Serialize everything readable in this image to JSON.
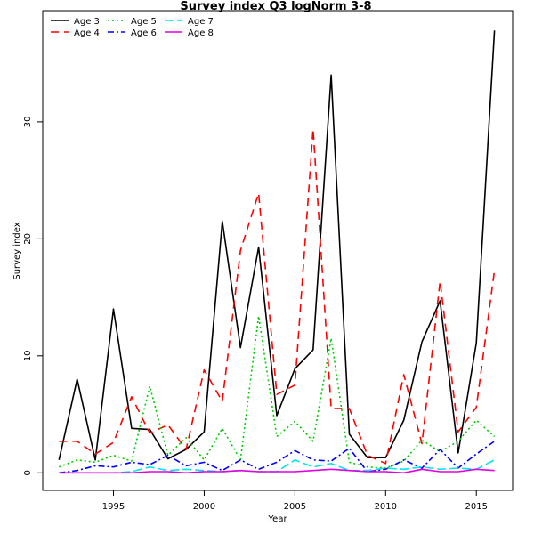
{
  "chart_data": {
    "type": "line",
    "title": "Survey index Q3 logNorm 3-8",
    "xlabel": "Year",
    "ylabel": "Survey index",
    "xlim": [
      1991.1,
      2017.0
    ],
    "ylim": [
      -1.5,
      39.5
    ],
    "xticks": [
      1995,
      2000,
      2005,
      2010,
      2015
    ],
    "yticks": [
      0,
      10,
      20,
      30
    ],
    "grid": false,
    "legend_position": "top-left",
    "x": [
      1992,
      1993,
      1994,
      1995,
      1996,
      1997,
      1998,
      1999,
      2000,
      2001,
      2002,
      2003,
      2004,
      2005,
      2006,
      2007,
      2008,
      2009,
      2010,
      2011,
      2012,
      2013,
      2014,
      2015,
      2016
    ],
    "series": [
      {
        "name": "Age 3",
        "color": "#000000",
        "dash": "",
        "values": [
          1.1,
          8.0,
          1.1,
          14.0,
          3.8,
          3.7,
          1.2,
          2.0,
          3.5,
          21.5,
          10.7,
          19.3,
          4.9,
          8.9,
          10.5,
          34.0,
          3.3,
          1.3,
          1.3,
          4.5,
          11.2,
          14.7,
          1.7,
          11.1,
          37.8
        ]
      },
      {
        "name": "Age 4",
        "color": "#ff0000",
        "dash": "9,6",
        "values": [
          2.7,
          2.7,
          1.6,
          2.6,
          6.5,
          3.4,
          4.1,
          2.0,
          8.8,
          6.1,
          19.0,
          23.9,
          6.7,
          7.5,
          29.4,
          5.5,
          5.5,
          1.5,
          0.8,
          8.4,
          2.5,
          16.4,
          3.5,
          5.6,
          17.3
        ]
      },
      {
        "name": "Age 5",
        "color": "#00cc00",
        "dash": "2,3",
        "values": [
          0.5,
          1.1,
          0.9,
          1.5,
          1.0,
          7.4,
          1.5,
          3.0,
          1.1,
          3.8,
          1.1,
          13.4,
          3.1,
          4.4,
          2.7,
          11.5,
          0.9,
          0.5,
          0.4,
          1.0,
          2.8,
          1.8,
          2.7,
          4.5,
          3.1
        ]
      },
      {
        "name": "Age 6",
        "color": "#0000ff",
        "dash": "7,3,2,3",
        "values": [
          0.0,
          0.2,
          0.6,
          0.5,
          0.9,
          0.7,
          1.5,
          0.6,
          0.9,
          0.2,
          1.1,
          0.3,
          0.9,
          1.9,
          1.1,
          1.0,
          2.1,
          0.1,
          0.3,
          1.1,
          0.4,
          2.0,
          0.4,
          1.6,
          2.7
        ]
      },
      {
        "name": "Age 7",
        "color": "#00e5ee",
        "dash": "10,4",
        "values": [
          0.0,
          0.0,
          0.0,
          0.0,
          0.1,
          0.5,
          0.2,
          0.3,
          0.2,
          0.1,
          0.2,
          0.1,
          0.1,
          1.1,
          0.5,
          0.8,
          0.2,
          0.2,
          0.4,
          0.3,
          0.5,
          0.3,
          0.4,
          0.3,
          1.1
        ]
      },
      {
        "name": "Age 8",
        "color": "#e000e0",
        "dash": "",
        "values": [
          0.0,
          0.0,
          0.0,
          0.0,
          0.0,
          0.1,
          0.1,
          0.0,
          0.1,
          0.1,
          0.2,
          0.1,
          0.1,
          0.1,
          0.2,
          0.3,
          0.2,
          0.1,
          0.1,
          0.0,
          0.3,
          0.1,
          0.1,
          0.3,
          0.2
        ]
      }
    ]
  }
}
